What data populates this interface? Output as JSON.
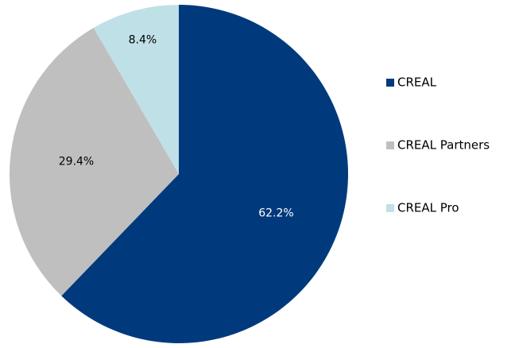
{
  "chart_data": {
    "type": "pie",
    "title": "",
    "categories": [
      "CREAL",
      "CREAL Partners",
      "CREAL Pro"
    ],
    "values": [
      62.2,
      29.4,
      8.4
    ],
    "value_labels": [
      "62.2%",
      "29.4%",
      "8.4%"
    ],
    "colors": [
      "#003a7d",
      "#bfbfbf",
      "#bfe0e6"
    ],
    "label_colors": [
      "#ffffff",
      "#000000",
      "#000000"
    ],
    "start_angle_deg": 0,
    "direction": "clockwise",
    "legend_position": "right"
  }
}
